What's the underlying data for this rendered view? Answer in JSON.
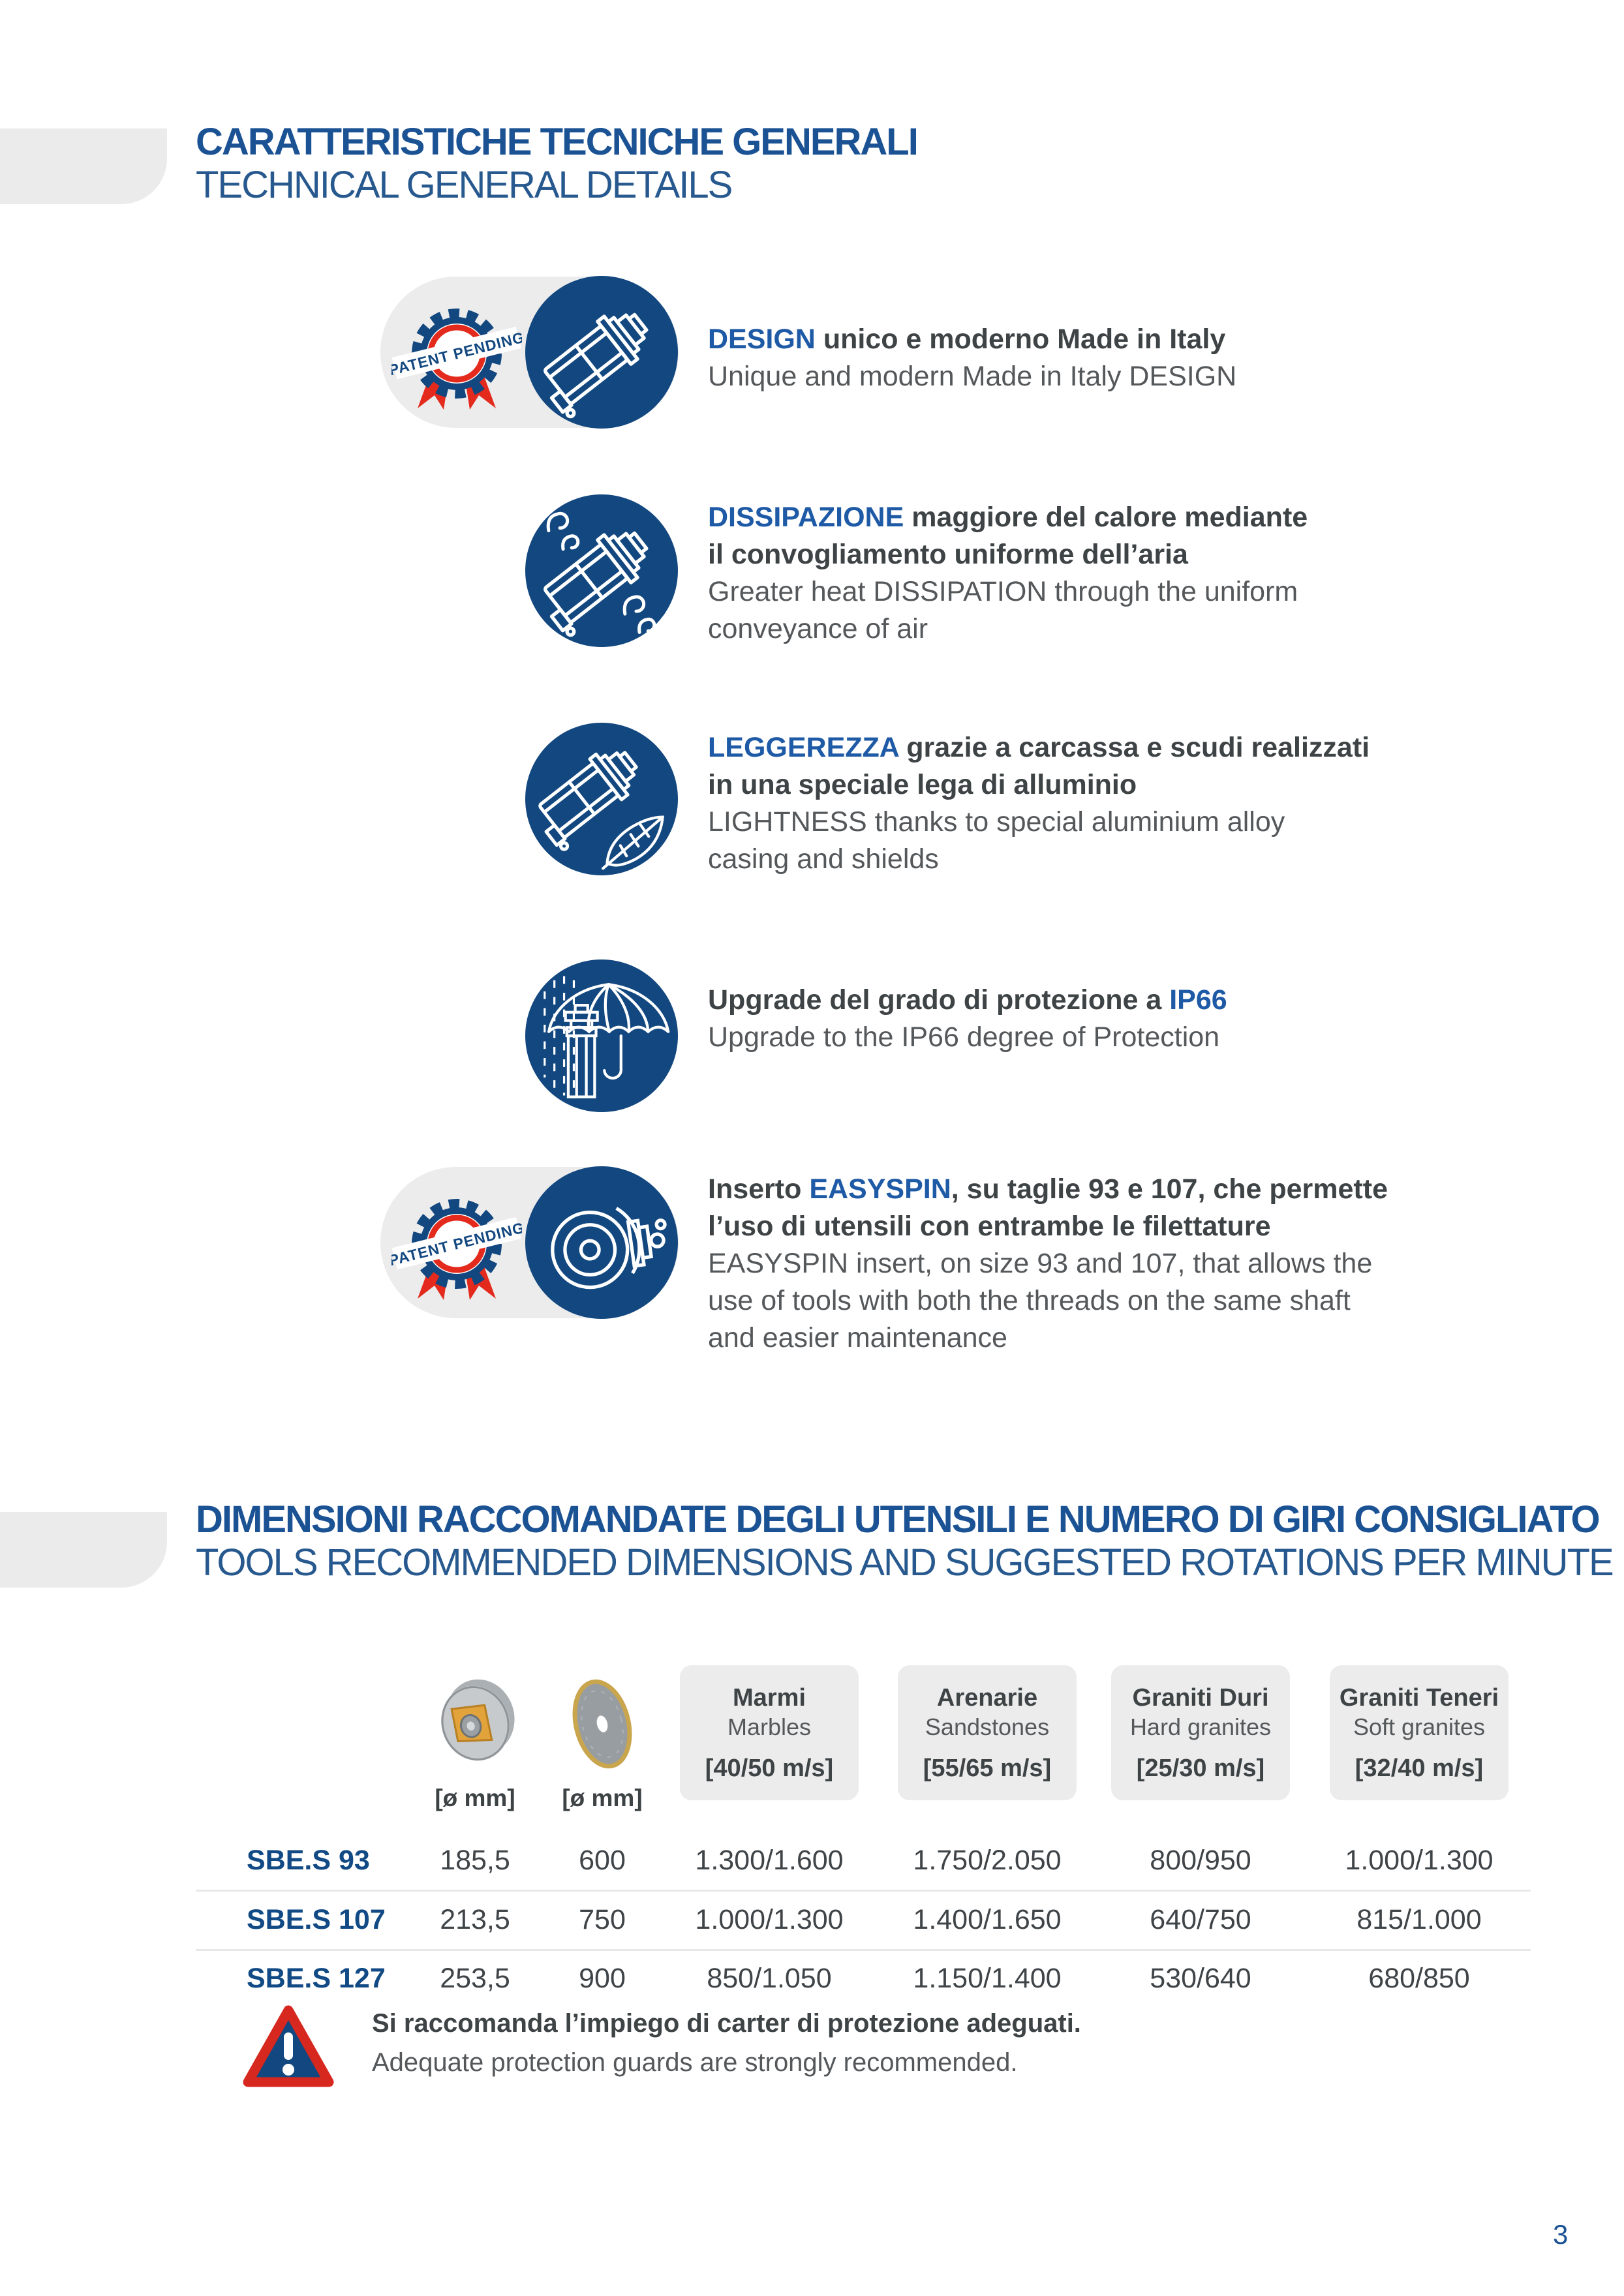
{
  "page": {
    "number": "3"
  },
  "header": {
    "title": "CARATTERISTICHE TECNICHE GENERALI",
    "subtitle": "TECHNICAL GENERAL DETAILS"
  },
  "features": [
    {
      "icon": "motor-icon",
      "badge": "PATENT PENDING",
      "pill": true,
      "it": [
        [
          {
            "t": "DESIGN",
            "a": 1
          },
          {
            "t": " unico e moderno Made in Italy"
          }
        ]
      ],
      "en": [
        "Unique and modern Made in Italy DESIGN"
      ]
    },
    {
      "icon": "motor-airflow-icon",
      "pill": false,
      "it": [
        [
          {
            "t": "DISSIPAZIONE",
            "a": 1
          },
          {
            "t": " maggiore del calore mediante"
          }
        ],
        [
          {
            "t": "il convogliamento uniforme dell’aria"
          }
        ]
      ],
      "en": [
        "Greater heat DISSIPATION through the uniform",
        "conveyance of air"
      ]
    },
    {
      "icon": "motor-feather-icon",
      "pill": false,
      "it": [
        [
          {
            "t": "LEGGEREZZA",
            "a": 1
          },
          {
            "t": " grazie a carcassa e scudi realizzati"
          }
        ],
        [
          {
            "t": "in una speciale lega di alluminio"
          }
        ]
      ],
      "en": [
        "LIGHTNESS thanks to special aluminium alloy",
        "casing and shields"
      ]
    },
    {
      "icon": "umbrella-rain-icon",
      "pill": false,
      "it": [
        [
          {
            "t": "Upgrade del grado di protezione a "
          },
          {
            "t": "IP66",
            "a": 1
          }
        ]
      ],
      "en": [
        "Upgrade to the IP66 degree of Protection"
      ]
    },
    {
      "icon": "motor-section-icon",
      "badge": "PATENT PENDING",
      "pill": true,
      "it": [
        [
          {
            "t": "Inserto "
          },
          {
            "t": "EASYSPIN",
            "a": 1
          },
          {
            "t": ", su taglie 93 e 107, che permette"
          }
        ],
        [
          {
            "t": "l’uso di utensili con entrambe le filettature"
          }
        ]
      ],
      "en": [
        "EASYSPIN insert, on size 93 and 107, that allows the",
        "use of tools with both the threads on the same shaft",
        "and easier maintenance"
      ]
    }
  ],
  "section2": {
    "title": "DIMENSIONI RACCOMANDATE DEGLI UTENSILI E NUMERO DI GIRI CONSIGLIATO",
    "subtitle": "TOOLS RECOMMENDED DIMENSIONS AND SUGGESTED ROTATIONS PER MINUTE"
  },
  "table": {
    "diameter_label": "[ø mm]",
    "material_columns": [
      {
        "name": "Marmi",
        "translation": "Marbles",
        "speed": "[40/50 m/s]"
      },
      {
        "name": "Arenarie",
        "translation": "Sandstones",
        "speed": "[55/65 m/s]"
      },
      {
        "name": "Graniti Duri",
        "translation": "Hard granites",
        "speed": "[25/30 m/s]"
      },
      {
        "name": "Graniti Teneri",
        "translation": "Soft granites",
        "speed": "[32/40 m/s]"
      }
    ],
    "rows": [
      {
        "model": "SBE.S 93",
        "wheel_d": "185,5",
        "disc_d": "600",
        "values": [
          "1.300/1.600",
          "1.750/2.050",
          "800/950",
          "1.000/1.300"
        ]
      },
      {
        "model": "SBE.S 107",
        "wheel_d": "213,5",
        "disc_d": "750",
        "values": [
          "1.000/1.300",
          "1.400/1.650",
          "640/750",
          "815/1.000"
        ]
      },
      {
        "model": "SBE.S 127",
        "wheel_d": "253,5",
        "disc_d": "900",
        "values": [
          "850/1.050",
          "1.150/1.400",
          "530/640",
          "680/850"
        ]
      }
    ]
  },
  "warning": {
    "it": "Si raccomanda l’impiego di carter di protezione adeguati.",
    "en": "Adequate protection guards are strongly recommended."
  },
  "colors": {
    "navy": "#12477f",
    "title_blue": "#1b5294",
    "accent_blue": "#1e5aa6",
    "red": "#da291c",
    "text_bold": "#3e4346",
    "text_regular": "#55585b",
    "box_gray": "#ececec"
  }
}
